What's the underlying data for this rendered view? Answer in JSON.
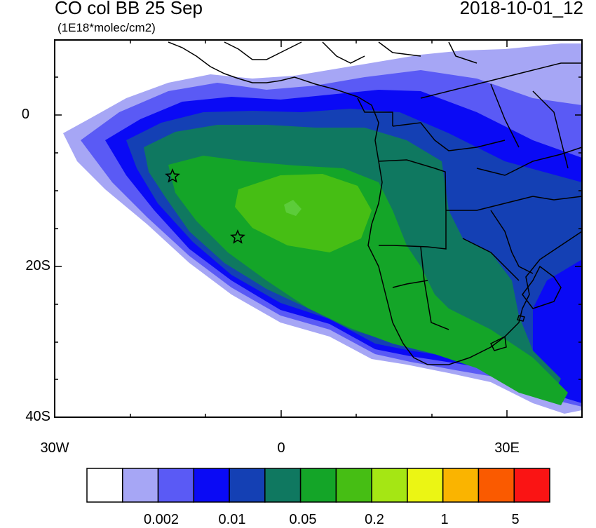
{
  "title": {
    "main": "CO col BB 25 Sep",
    "units": "(1E18*molec/cm2)",
    "datetime": "2018-10-01_12"
  },
  "axes": {
    "y_ticks": [
      "0",
      "20S",
      "40S"
    ],
    "x_ticks": [
      "30W",
      "0",
      "30E"
    ]
  },
  "colorbar": {
    "labels": [
      "0.002",
      "0.01",
      "0.05",
      "0.2",
      "1",
      "5"
    ],
    "colors": [
      "#ffffff",
      "#a6a6f5",
      "#5a5af5",
      "#0a0af5",
      "#1440b4",
      "#0f7860",
      "#14a528",
      "#46be14",
      "#a5e614",
      "#ebf514",
      "#fab400",
      "#fa5a00",
      "#fa1414"
    ]
  },
  "markers": [
    {
      "name": "star-marker",
      "lon": -14.5,
      "lat": -8
    },
    {
      "name": "star-marker",
      "lon": -5.7,
      "lat": -16
    }
  ],
  "chart_data": {
    "type": "heatmap",
    "title": "CO col BB 25 Sep",
    "subtitle": "(1E18*molec/cm2)",
    "timestamp": "2018-10-01_12",
    "x_range": [
      -30,
      40
    ],
    "y_range": [
      -40,
      10
    ],
    "x_ticks": [
      "30W",
      "0",
      "30E"
    ],
    "y_ticks": [
      "0",
      "20S",
      "40S"
    ],
    "legend_placement": "bottom",
    "colorbar_labels": [
      "0.002",
      "0.01",
      "0.05",
      "0.2",
      "1",
      "5"
    ]
  }
}
